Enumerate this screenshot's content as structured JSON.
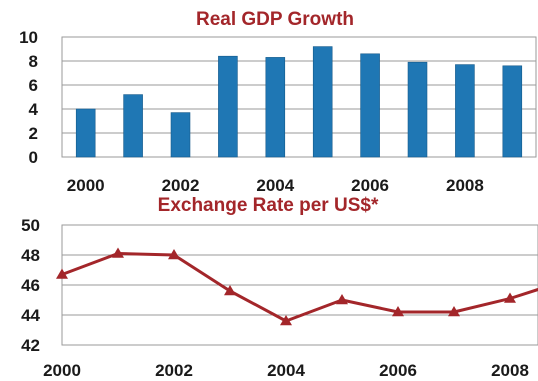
{
  "chart_data": [
    {
      "type": "bar",
      "title": "Real GDP Growth",
      "categories": [
        "2000",
        "2001",
        "2002",
        "2003",
        "2004",
        "2005",
        "2006",
        "2007",
        "2008",
        "2009"
      ],
      "values": [
        4.0,
        5.2,
        3.7,
        8.4,
        8.3,
        9.2,
        8.6,
        7.9,
        7.7,
        7.6
      ],
      "x_tick_labels": [
        "2000",
        "2002",
        "2004",
        "2006",
        "2008"
      ],
      "y_tick_labels": [
        "0",
        "2",
        "4",
        "6",
        "8",
        "10"
      ],
      "ylim": [
        0,
        10
      ],
      "grid": "horizontal",
      "colors": {
        "bar": "#1f77b4",
        "title": "#a3262a"
      }
    },
    {
      "type": "line",
      "title": "Exchange Rate per US$*",
      "x": [
        2000,
        2001,
        2002,
        2003,
        2004,
        2005,
        2006,
        2007,
        2008,
        2009
      ],
      "y": [
        46.7,
        48.1,
        48.0,
        45.6,
        43.6,
        45.0,
        44.2,
        44.2,
        45.1,
        46.3
      ],
      "x_tick_labels": [
        "2000",
        "2002",
        "2004",
        "2006",
        "2008"
      ],
      "y_tick_labels": [
        "42",
        "44",
        "46",
        "48",
        "50"
      ],
      "ylim": [
        42,
        50
      ],
      "xlim": [
        2000,
        2009
      ],
      "grid": "horizontal",
      "colors": {
        "line": "#a3262a",
        "title": "#a3262a"
      }
    }
  ]
}
